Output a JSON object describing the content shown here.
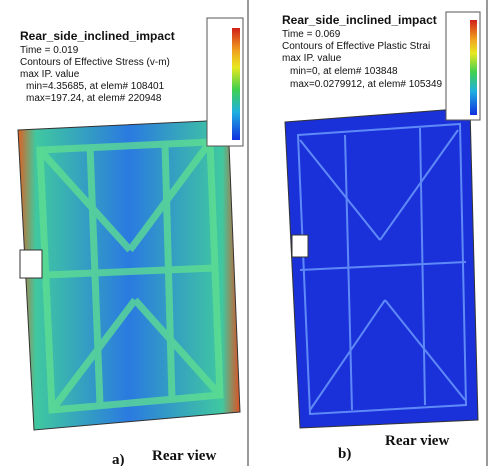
{
  "panels": [
    {
      "title": "Rear_side_inclined_impact",
      "time": "Time = 0.019",
      "contours": "Contours of Effective Stress (v-m)",
      "value_type": "max IP. value",
      "min": "min=4.35685, at elem# 108401",
      "max": "max=197.24, at elem# 220948",
      "caption": "Rear view",
      "label": "a)"
    },
    {
      "title": "Rear_side_inclined_impact",
      "time": "Time = 0.069",
      "contours": "Contours of Effective Plastic Strai",
      "value_type": "max IP. value",
      "min": "min=0, at elem# 103848",
      "max": "max=0.0279912, at elem# 105349",
      "caption": "Rear view",
      "label": "b)"
    }
  ]
}
